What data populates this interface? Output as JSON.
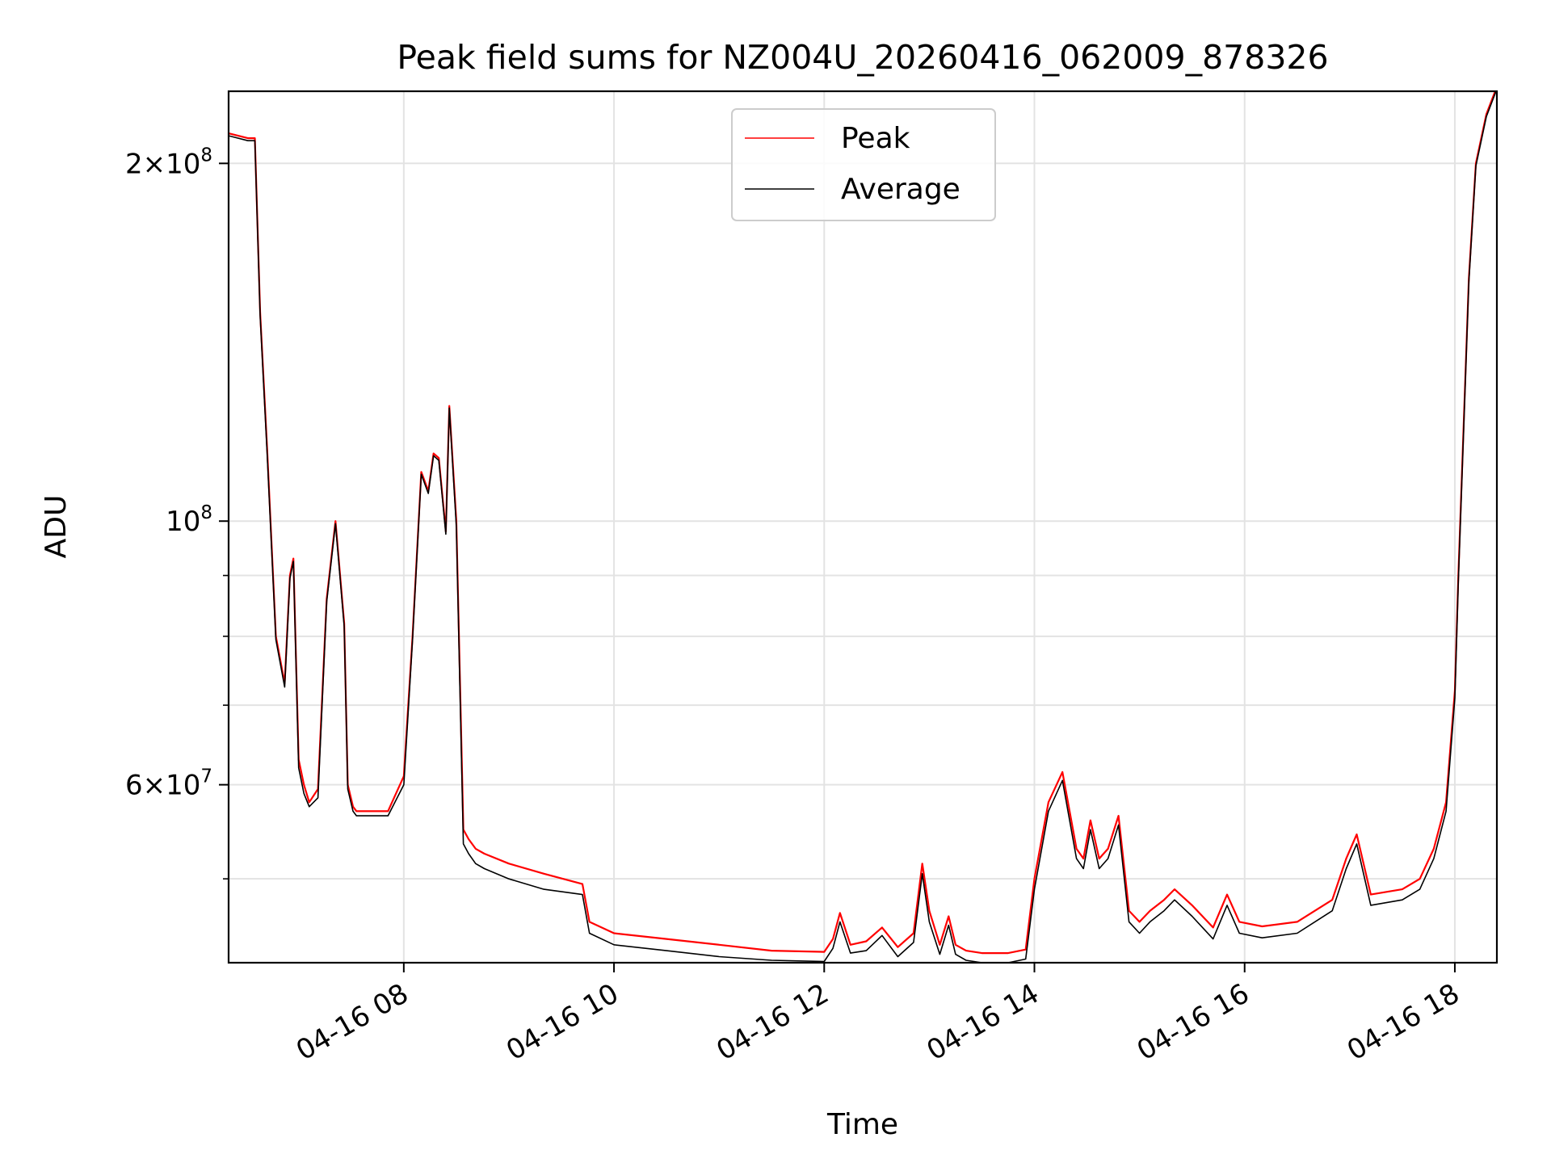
{
  "chart_data": {
    "type": "line",
    "title": "Peak field sums for NZ004U_20260416_062009_878326",
    "xlabel": "Time",
    "ylabel": "ADU",
    "yscale": "log",
    "ylim": [
      42500000,
      230000000
    ],
    "xlim": [
      "04-16 06:20",
      "04-16 18:24"
    ],
    "grid": true,
    "legend_position": "upper center",
    "x_ticks": [
      {
        "value": "04-16 08:00",
        "label": "04-16 08"
      },
      {
        "value": "04-16 10:00",
        "label": "04-16 10"
      },
      {
        "value": "04-16 12:00",
        "label": "04-16 12"
      },
      {
        "value": "04-16 14:00",
        "label": "04-16 14"
      },
      {
        "value": "04-16 16:00",
        "label": "04-16 16"
      },
      {
        "value": "04-16 18:00",
        "label": "04-16 18"
      }
    ],
    "y_major_ticks": [
      {
        "value": 60000000,
        "mant": "6",
        "exp": "7"
      },
      {
        "value": 100000000,
        "mant": "",
        "exp": "8"
      },
      {
        "value": 200000000,
        "mant": "2",
        "exp": "8"
      }
    ],
    "y_minor_ticks": [
      50000000,
      70000000,
      80000000,
      90000000
    ],
    "times": [
      "04-16 06:20",
      "04-16 06:31",
      "04-16 06:35",
      "04-16 06:38",
      "04-16 06:42",
      "04-16 06:47",
      "04-16 06:52",
      "04-16 06:55",
      "04-16 06:57",
      "04-16 07:00",
      "04-16 07:03",
      "04-16 07:06",
      "04-16 07:11",
      "04-16 07:16",
      "04-16 07:21",
      "04-16 07:26",
      "04-16 07:28",
      "04-16 07:31",
      "04-16 07:33",
      "04-16 07:36",
      "04-16 07:39",
      "04-16 07:44",
      "04-16 07:51",
      "04-16 08:00",
      "04-16 08:05",
      "04-16 08:10",
      "04-16 08:14",
      "04-16 08:17",
      "04-16 08:20",
      "04-16 08:24",
      "04-16 08:26",
      "04-16 08:30",
      "04-16 08:34",
      "04-16 08:37",
      "04-16 08:41",
      "04-16 08:46",
      "04-16 09:00",
      "04-16 09:20",
      "04-16 09:42",
      "04-16 09:46",
      "04-16 10:00",
      "04-16 10:30",
      "04-16 11:00",
      "04-16 11:30",
      "04-16 12:00",
      "04-16 12:05",
      "04-16 12:09",
      "04-16 12:15",
      "04-16 12:24",
      "04-16 12:33",
      "04-16 12:42",
      "04-16 12:51",
      "04-16 12:56",
      "04-16 13:00",
      "04-16 13:06",
      "04-16 13:11",
      "04-16 13:15",
      "04-16 13:21",
      "04-16 13:30",
      "04-16 13:45",
      "04-16 13:55",
      "04-16 14:00",
      "04-16 14:08",
      "04-16 14:16",
      "04-16 14:24",
      "04-16 14:28",
      "04-16 14:32",
      "04-16 14:37",
      "04-16 14:42",
      "04-16 14:48",
      "04-16 14:54",
      "04-16 15:00",
      "04-16 15:06",
      "04-16 15:14",
      "04-16 15:20",
      "04-16 15:30",
      "04-16 15:42",
      "04-16 15:50",
      "04-16 15:57",
      "04-16 16:10",
      "04-16 16:30",
      "04-16 16:50",
      "04-16 16:58",
      "04-16 17:04",
      "04-16 17:12",
      "04-16 17:30",
      "04-16 17:40",
      "04-16 17:48",
      "04-16 17:55",
      "04-16 18:00",
      "04-16 18:02",
      "04-16 18:05",
      "04-16 18:08",
      "04-16 18:12",
      "04-16 18:18",
      "04-16 18:24"
    ],
    "series": [
      {
        "name": "Peak",
        "color": "#ff0000",
        "values": [
          212000000,
          210000000,
          210000000,
          150000000,
          115000000,
          80000000,
          73000000,
          90000000,
          93000000,
          63000000,
          60000000,
          58000000,
          59500000,
          86000000,
          100000000,
          82000000,
          60000000,
          57500000,
          57000000,
          57000000,
          57000000,
          57000000,
          57000000,
          61000000,
          80000000,
          110000000,
          106000000,
          114000000,
          113000000,
          98000000,
          125000000,
          100000000,
          55000000,
          54000000,
          53000000,
          52500000,
          51500000,
          50500000,
          49500000,
          46000000,
          45000000,
          44500000,
          44000000,
          43500000,
          43400000,
          44500000,
          46800000,
          44000000,
          44300000,
          45500000,
          43800000,
          45000000,
          51500000,
          47000000,
          44000000,
          46500000,
          44000000,
          43500000,
          43300000,
          43300000,
          43600000,
          50000000,
          58000000,
          61500000,
          53000000,
          52000000,
          56000000,
          52000000,
          53000000,
          56500000,
          47000000,
          46000000,
          47000000,
          48000000,
          49000000,
          47500000,
          45500000,
          48500000,
          46000000,
          45600000,
          46000000,
          48000000,
          52000000,
          54500000,
          48500000,
          49000000,
          50000000,
          53000000,
          58000000,
          72000000,
          90000000,
          120000000,
          160000000,
          200000000,
          220000000,
          232000000
        ]
      },
      {
        "name": "Average",
        "color": "#000000",
        "values": [
          211000000,
          209000000,
          209000000,
          149000000,
          114000000,
          79500000,
          72500000,
          89500000,
          92500000,
          62000000,
          59000000,
          57500000,
          58500000,
          85500000,
          99500000,
          81500000,
          59500000,
          57000000,
          56500000,
          56500000,
          56500000,
          56500000,
          56500000,
          60000000,
          79500000,
          109500000,
          105500000,
          113500000,
          112500000,
          97500000,
          124500000,
          99000000,
          53500000,
          52500000,
          51500000,
          51000000,
          50000000,
          49000000,
          48500000,
          45000000,
          44000000,
          43500000,
          43000000,
          42700000,
          42600000,
          43700000,
          46000000,
          43300000,
          43500000,
          44800000,
          43000000,
          44200000,
          50500000,
          46000000,
          43200000,
          45700000,
          43200000,
          42700000,
          42500000,
          42500000,
          42800000,
          49000000,
          57000000,
          60500000,
          52000000,
          51000000,
          55000000,
          51000000,
          52000000,
          55500000,
          46000000,
          45000000,
          46000000,
          47000000,
          48000000,
          46500000,
          44500000,
          47500000,
          45000000,
          44600000,
          45000000,
          47000000,
          51000000,
          53500000,
          47500000,
          48000000,
          49000000,
          52000000,
          57000000,
          71000000,
          89000000,
          119000000,
          159000000,
          199000000,
          219000000,
          231000000
        ]
      }
    ]
  }
}
